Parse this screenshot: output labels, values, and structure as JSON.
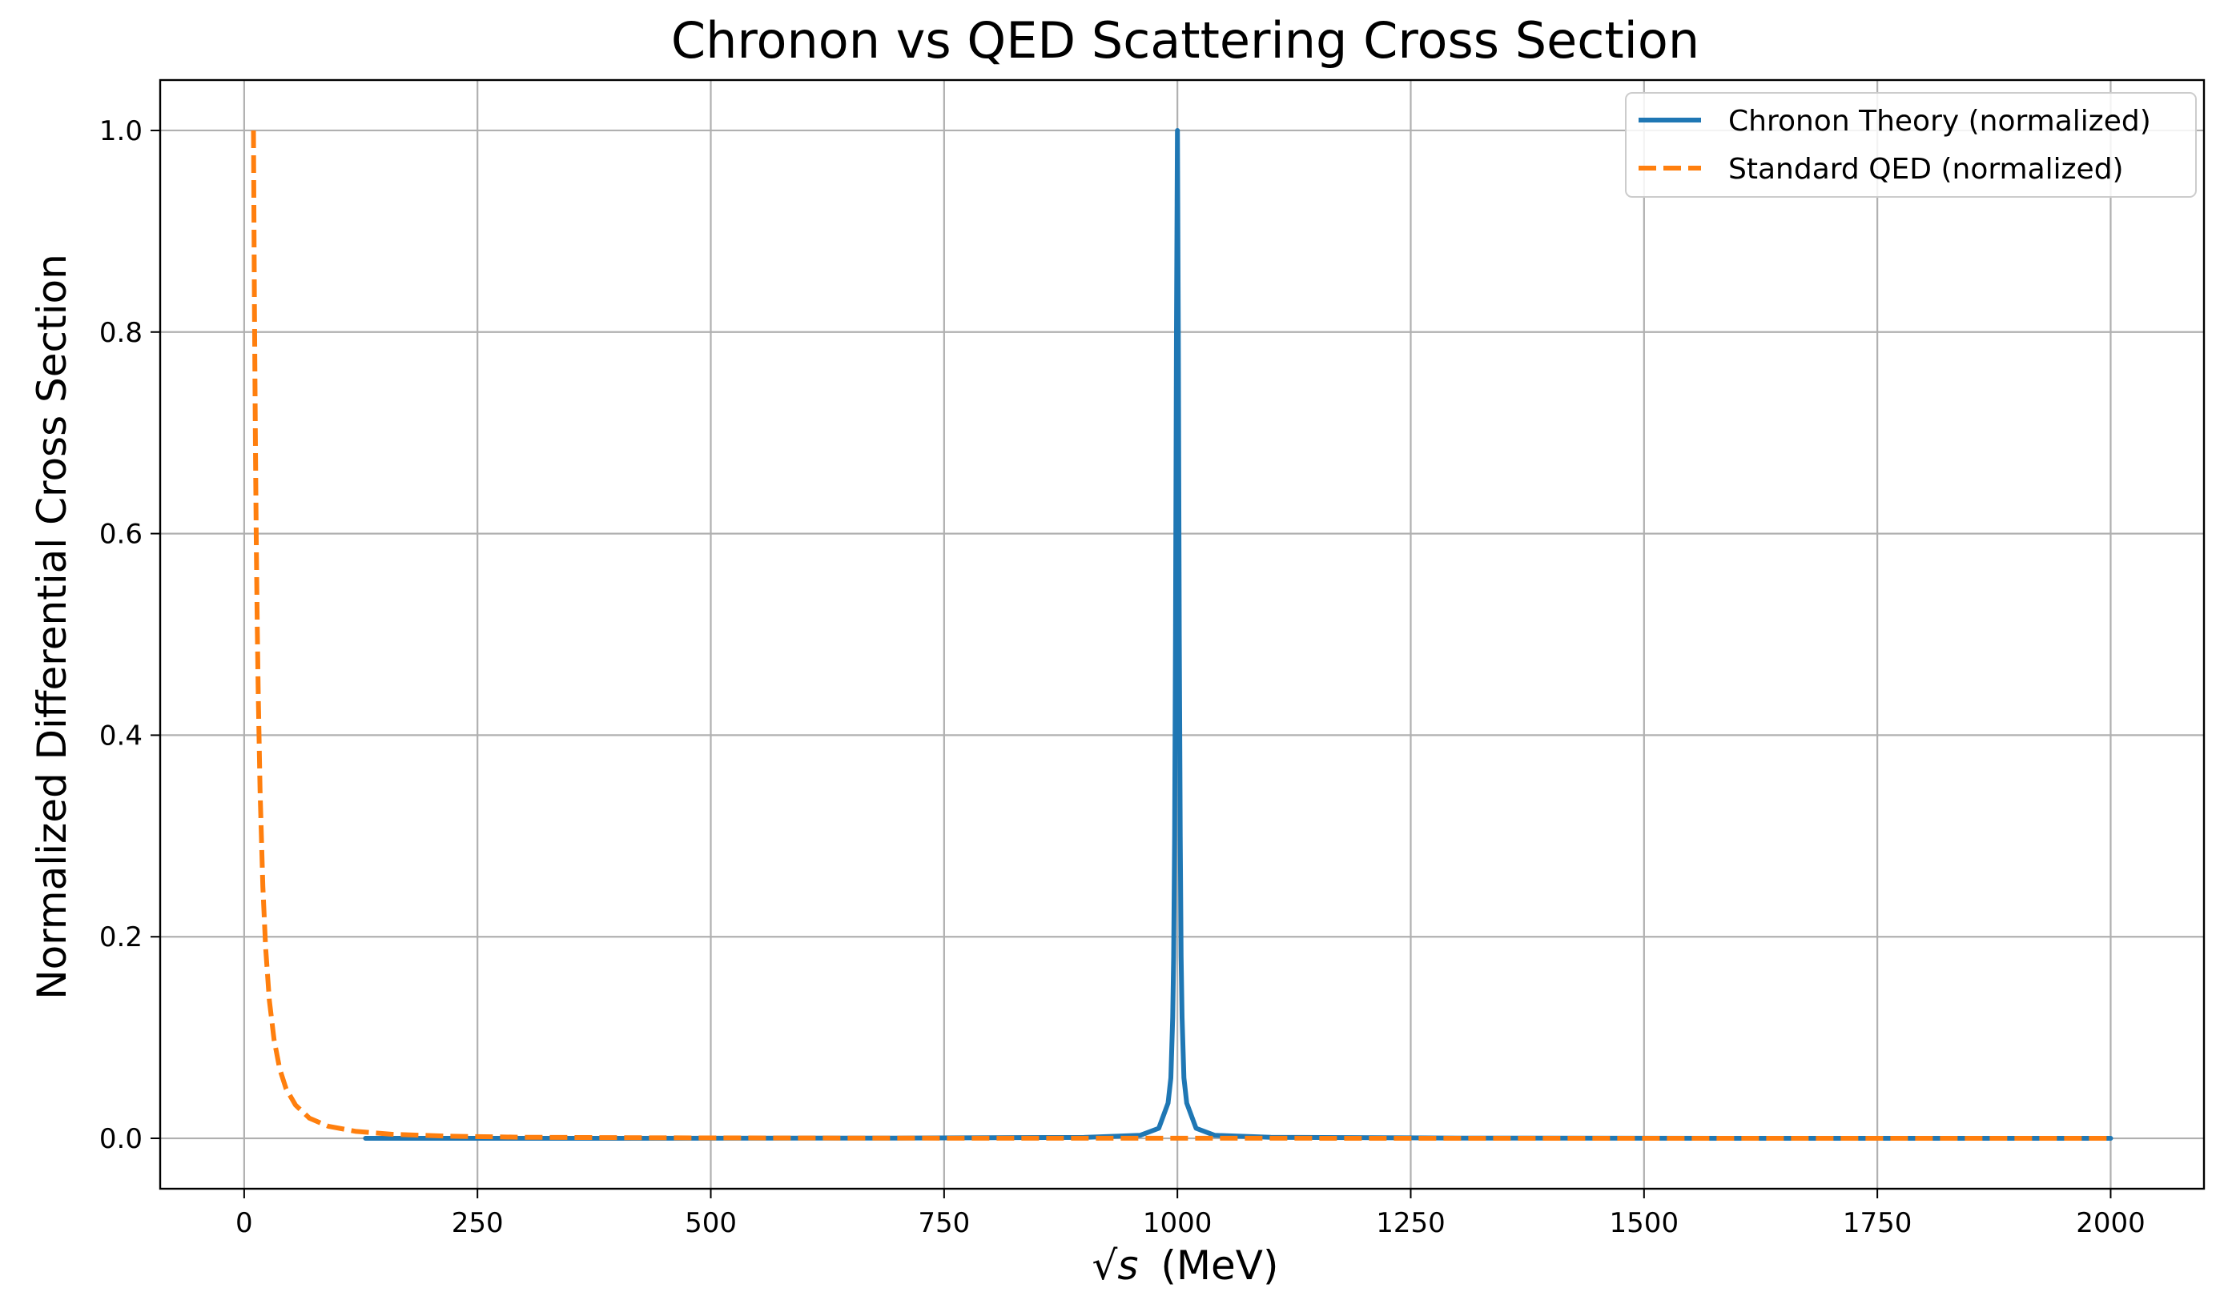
{
  "chart_data": {
    "type": "line",
    "title": "Chronon vs QED Scattering Cross Section",
    "xlabel": {
      "math": "√s",
      "unit": "(MeV)"
    },
    "ylabel": "Normalized Differential Cross Section",
    "xlim": [
      -90,
      2100
    ],
    "ylim": [
      -0.05,
      1.05
    ],
    "xticks": [
      0,
      250,
      500,
      750,
      1000,
      1250,
      1500,
      1750,
      2000
    ],
    "yticks": [
      0.0,
      0.2,
      0.4,
      0.6,
      0.8,
      1.0
    ],
    "ytick_labels": [
      "0.0",
      "0.2",
      "0.4",
      "0.6",
      "0.8",
      "1.0"
    ],
    "grid": true,
    "legend_position": "top-right",
    "series": [
      {
        "name": "Chronon Theory (normalized)",
        "color": "#1f77b4",
        "style": "solid",
        "x": [
          130,
          400,
          700,
          900,
          960,
          980,
          990,
          993,
          995,
          996,
          997,
          998,
          999,
          1000,
          1001,
          1002,
          1003,
          1004,
          1005,
          1007,
          1010,
          1020,
          1040,
          1100,
          1300,
          1600,
          2000
        ],
        "y": [
          0.0,
          0.0,
          0.0003,
          0.0009,
          0.003,
          0.01,
          0.035,
          0.06,
          0.12,
          0.18,
          0.3,
          0.5,
          0.8,
          1.0,
          0.8,
          0.5,
          0.3,
          0.18,
          0.12,
          0.06,
          0.035,
          0.01,
          0.003,
          0.001,
          0.0003,
          0.0,
          0.0
        ]
      },
      {
        "name": "Standard QED (normalized)",
        "color": "#ff7f0e",
        "style": "dashed",
        "x": [
          10,
          11,
          12,
          13,
          14,
          15,
          17,
          20,
          23,
          27,
          32,
          38,
          45,
          55,
          70,
          90,
          120,
          160,
          220,
          300,
          450,
          700,
          1000,
          1400,
          2000
        ],
        "y": [
          1.0,
          0.826,
          0.694,
          0.592,
          0.51,
          0.444,
          0.346,
          0.25,
          0.189,
          0.137,
          0.098,
          0.069,
          0.049,
          0.033,
          0.02,
          0.012,
          0.0069,
          0.0039,
          0.0021,
          0.0011,
          0.0005,
          0.0002,
          0.0001,
          5e-05,
          3e-05
        ]
      }
    ]
  }
}
